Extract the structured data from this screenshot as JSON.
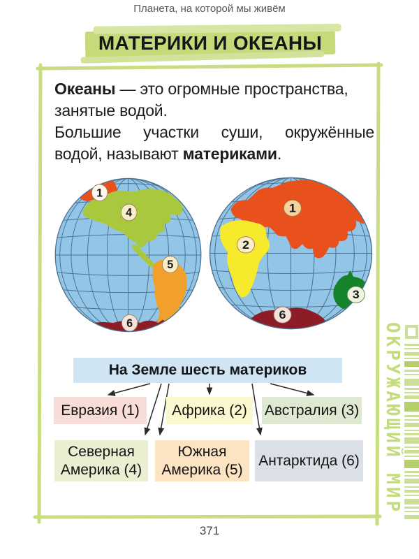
{
  "page": {
    "running_head": "Планета, на которой мы живём",
    "title": "МАТЕРИКИ И ОКЕАНЫ",
    "page_number": "371",
    "sidebar_vertical_text": "ОКРУЖАЮЩИЙ МИР"
  },
  "intro": {
    "p1_bold": "Океаны",
    "p1_line1_rest": " — это огромные пространства,",
    "p1_line2": "занятые водой.",
    "p2_line1": "Большие участки суши, окружённые",
    "p2_line2_start": "водой, называют ",
    "p2_bold": "материками",
    "p2_end": "."
  },
  "globes": {
    "west": {
      "badges": [
        "1",
        "4",
        "5",
        "6"
      ]
    },
    "east": {
      "badges": [
        "1",
        "2",
        "3",
        "6"
      ]
    }
  },
  "flowchart": {
    "header": "На Земле шесть материков",
    "boxes": [
      {
        "label": "Евразия (1)",
        "bg": "#f8dcd8"
      },
      {
        "label": "Африка (2)",
        "bg": "#fbf8d0"
      },
      {
        "label": "Австралия (3)",
        "bg": "#dfe8d1"
      },
      {
        "lines": [
          "Северная",
          "Америка (4)"
        ],
        "bg": "#e9f0d2"
      },
      {
        "lines": [
          "Южная",
          "Америка (5)"
        ],
        "bg": "#fce4c2"
      },
      {
        "label": "Антарктида (6)",
        "bg": "#dbdfe6"
      }
    ]
  },
  "colors": {
    "frame_green": "#c8dd80",
    "highlight_green": "#c6da7a",
    "ocean_blue": "#93c5e6",
    "grid_blue": "#4c7291",
    "header_box_blue": "#cfe5f4",
    "eurasia": "#e8501c",
    "africa": "#f7ea2d",
    "australia": "#14832a",
    "north_america": "#a9c83e",
    "south_america": "#f0a02b",
    "antarctica": "#8e1c26",
    "badge_cream": "#f9edca"
  }
}
